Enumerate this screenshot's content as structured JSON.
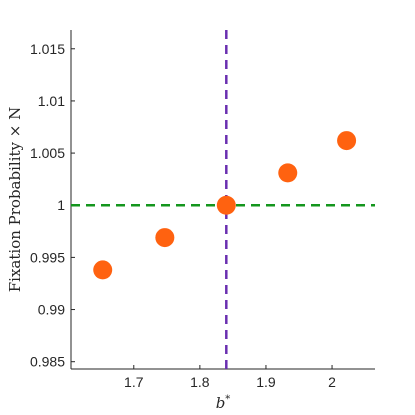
{
  "chart_data": {
    "type": "scatter",
    "title": "",
    "xlabel": "b*",
    "ylabel": "Fixation Probability × N",
    "xlim": [
      1.605,
      2.065
    ],
    "ylim": [
      0.9843,
      1.0168
    ],
    "xticks": [
      1.7,
      1.8,
      1.9,
      2.0
    ],
    "xtick_labels": [
      "1.7",
      "1.8",
      "1.9",
      "2"
    ],
    "yticks": [
      0.985,
      0.99,
      0.995,
      1.0,
      1.005,
      1.01,
      1.015
    ],
    "ytick_labels": [
      "0.985",
      "0.99",
      "0.995",
      "1",
      "1.005",
      "1.01",
      "1.015"
    ],
    "grid": false,
    "legend": "none",
    "series": [
      {
        "x": [
          1.653,
          1.747,
          1.84,
          1.933,
          2.022
        ],
        "y": [
          0.9938,
          0.9969,
          1.0,
          1.0031,
          1.0062
        ],
        "color": "#ff6210"
      }
    ],
    "reference_lines": [
      {
        "orientation": "horizontal",
        "value": 1.0,
        "style": "dashed",
        "color": "#14961e"
      },
      {
        "orientation": "vertical",
        "value": 1.84,
        "style": "dashed",
        "color": "#6a2fb0"
      }
    ]
  }
}
